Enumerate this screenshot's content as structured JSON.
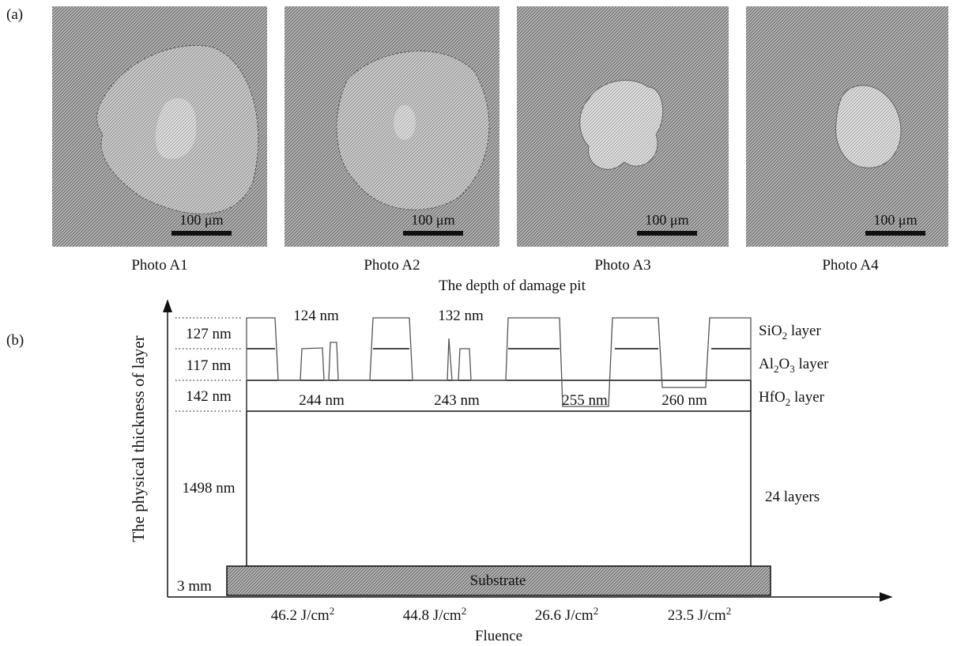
{
  "panel_a": {
    "label": "(a)",
    "photos": [
      {
        "scale_bar": "100 μm",
        "caption": "Photo A1"
      },
      {
        "scale_bar": "100 μm",
        "caption": "Photo A2"
      },
      {
        "scale_bar": "100 μm",
        "caption": "Photo A3"
      },
      {
        "scale_bar": "100 μm",
        "caption": "Photo A4"
      }
    ]
  },
  "panel_b": {
    "label": "(b)",
    "title": "The depth of damage pit",
    "y_axis_title": "The physical thickness of layer",
    "x_axis_title": "Fluence",
    "thickness_labels": [
      "127 nm",
      "117 nm",
      "142 nm",
      "1498 nm",
      "3 mm"
    ],
    "top_depths": [
      "124 nm",
      "132 nm"
    ],
    "pit_depths": [
      "244 nm",
      "243 nm",
      "255 nm",
      "260 nm"
    ],
    "layer_labels": [
      {
        "name": "SiO",
        "sub": "2",
        "suffix": " layer"
      },
      {
        "name": "Al",
        "sub": "2",
        "mid": "O",
        "sub2": "3",
        "suffix": " layer"
      },
      {
        "name": "HfO",
        "sub": "2",
        "suffix": " layer"
      }
    ],
    "stack_label": "24 layers",
    "substrate": "Substrate",
    "fluences": [
      {
        "value": "46.2 J/cm",
        "sup": "2"
      },
      {
        "value": "44.8 J/cm",
        "sup": "2"
      },
      {
        "value": "26.6 J/cm",
        "sup": "2"
      },
      {
        "value": "23.5 J/cm",
        "sup": "2"
      }
    ]
  }
}
